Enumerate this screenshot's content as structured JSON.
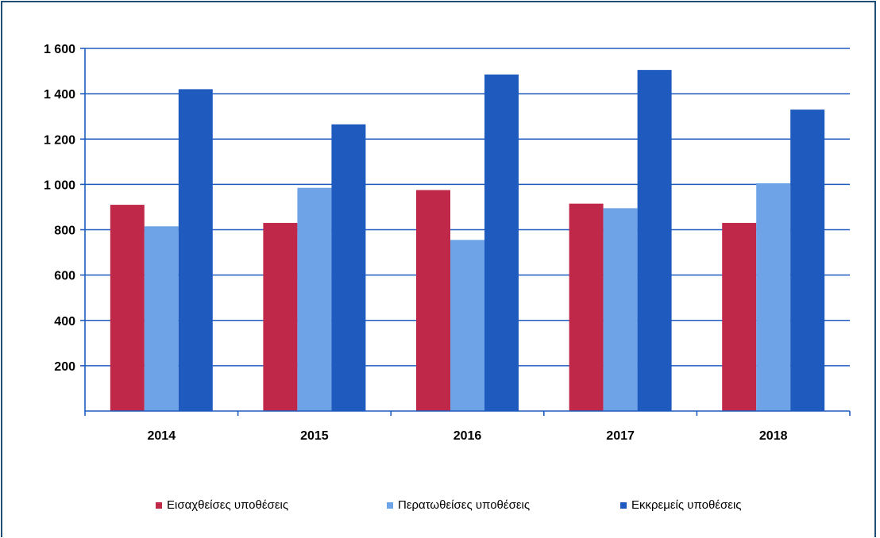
{
  "chart_data": {
    "type": "bar",
    "title": "",
    "xlabel": "",
    "ylabel": "",
    "categories": [
      "2014",
      "2015",
      "2016",
      "2017",
      "2018"
    ],
    "series": [
      {
        "name": "Εισαχθείσες υποθέσεις",
        "color": "#c0284a",
        "values": [
          910,
          830,
          975,
          915,
          830
        ]
      },
      {
        "name": "Περατωθείσες υποθέσεις",
        "color": "#6fa3e8",
        "values": [
          815,
          985,
          755,
          895,
          1005
        ]
      },
      {
        "name": "Εκκρεμείς υποθέσεις",
        "color": "#1f5bbf",
        "values": [
          1420,
          1265,
          1485,
          1505,
          1330
        ]
      }
    ],
    "ylim": [
      0,
      1600
    ],
    "yticks": [
      {
        "value": 200,
        "label": "200"
      },
      {
        "value": 400,
        "label": "400"
      },
      {
        "value": 600,
        "label": "600"
      },
      {
        "value": 800,
        "label": "800"
      },
      {
        "value": 1000,
        "label": "1 000"
      },
      {
        "value": 1200,
        "label": "1 200"
      },
      {
        "value": 1400,
        "label": "1 400"
      },
      {
        "value": 1600,
        "label": "1 600"
      }
    ],
    "grid": true,
    "legend_position": "bottom"
  },
  "colors": {
    "axis": "#1f5bbf",
    "gridline": "#1f5bbf",
    "frame": "#1f4e79"
  }
}
